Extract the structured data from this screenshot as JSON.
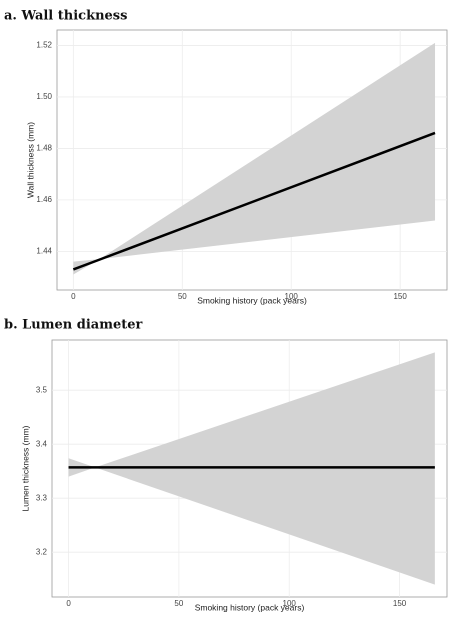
{
  "chart_data": [
    {
      "type": "line",
      "title": "a. Wall thickness",
      "x_label": "Smoking history (pack years)",
      "y_label": "Wall thickness (mm)",
      "x": [
        0,
        12,
        166
      ],
      "values": [
        1.433,
        1.4368,
        1.486
      ],
      "lower": [
        1.431,
        1.437,
        1.452
      ],
      "upper": [
        1.436,
        1.437,
        1.521
      ],
      "color": "#000000",
      "band_color": "#d3d3d3",
      "xlim": [
        -7.5,
        171.5
      ],
      "xticks": [
        0,
        50,
        100,
        150
      ],
      "ylim": [
        1.425,
        1.526
      ],
      "yticks": [
        1.44,
        1.46,
        1.48,
        {
          "value": 1.5,
          "label": "1.50"
        },
        1.52
      ],
      "grid": true
    },
    {
      "type": "line",
      "title": "b. Lumen diameter",
      "x_label": "Smoking history (pack years)",
      "y_label": "Lumen thickness (mm)",
      "x": [
        0,
        12,
        166
      ],
      "values": [
        3.357,
        3.357,
        3.357
      ],
      "lower": [
        3.34,
        3.357,
        3.14
      ],
      "upper": [
        3.374,
        3.357,
        3.57
      ],
      "color": "#000000",
      "band_color": "#d3d3d3",
      "xlim": [
        -7.5,
        171.5
      ],
      "xticks": [
        0,
        50,
        100,
        150
      ],
      "ylim": [
        3.117,
        3.593
      ],
      "yticks": [
        3.2,
        3.3,
        3.4,
        3.5
      ],
      "grid": true
    }
  ]
}
